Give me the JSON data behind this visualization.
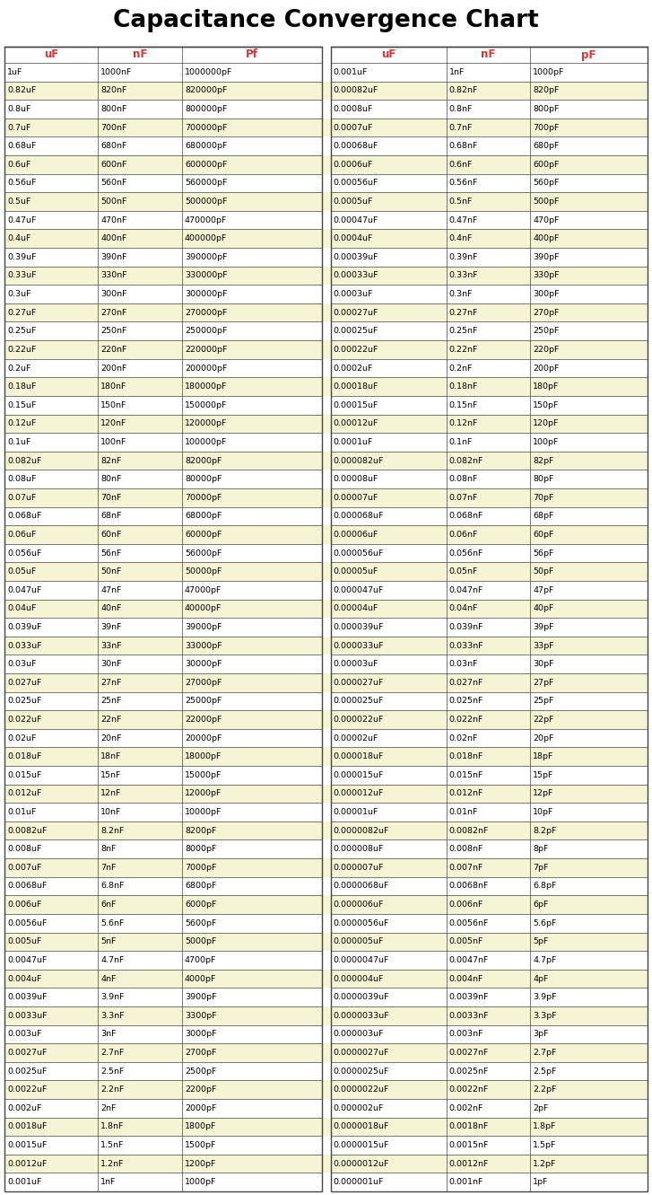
{
  "title": "Capacitance Convergence Chart",
  "title_fontsize": 19,
  "title_color": "#000000",
  "header_color": "#d63333",
  "header_left": [
    "uF",
    "nF",
    "Pf"
  ],
  "header_right": [
    "uF",
    "nF",
    "pF"
  ],
  "left_table": [
    [
      "1uF",
      "1000nF",
      "1000000pF"
    ],
    [
      "0.82uF",
      "820nF",
      "820000pF"
    ],
    [
      "0.8uF",
      "800nF",
      "800000pF"
    ],
    [
      "0.7uF",
      "700nF",
      "700000pF"
    ],
    [
      "0.68uF",
      "680nF",
      "680000pF"
    ],
    [
      "0.6uF",
      "600nF",
      "600000pF"
    ],
    [
      "0.56uF",
      "560nF",
      "560000pF"
    ],
    [
      "0.5uF",
      "500nF",
      "500000pF"
    ],
    [
      "0.47uF",
      "470nF",
      "470000pF"
    ],
    [
      "0.4uF",
      "400nF",
      "400000pF"
    ],
    [
      "0.39uF",
      "390nF",
      "390000pF"
    ],
    [
      "0.33uF",
      "330nF",
      "330000pF"
    ],
    [
      "0.3uF",
      "300nF",
      "300000pF"
    ],
    [
      "0.27uF",
      "270nF",
      "270000pF"
    ],
    [
      "0.25uF",
      "250nF",
      "250000pF"
    ],
    [
      "0.22uF",
      "220nF",
      "220000pF"
    ],
    [
      "0.2uF",
      "200nF",
      "200000pF"
    ],
    [
      "0.18uF",
      "180nF",
      "180000pF"
    ],
    [
      "0.15uF",
      "150nF",
      "150000pF"
    ],
    [
      "0.12uF",
      "120nF",
      "120000pF"
    ],
    [
      "0.1uF",
      "100nF",
      "100000pF"
    ],
    [
      "0.082uF",
      "82nF",
      "82000pF"
    ],
    [
      "0.08uF",
      "80nF",
      "80000pF"
    ],
    [
      "0.07uF",
      "70nF",
      "70000pF"
    ],
    [
      "0.068uF",
      "68nF",
      "68000pF"
    ],
    [
      "0.06uF",
      "60nF",
      "60000pF"
    ],
    [
      "0.056uF",
      "56nF",
      "56000pF"
    ],
    [
      "0.05uF",
      "50nF",
      "50000pF"
    ],
    [
      "0.047uF",
      "47nF",
      "47000pF"
    ],
    [
      "0.04uF",
      "40nF",
      "40000pF"
    ],
    [
      "0.039uF",
      "39nF",
      "39000pF"
    ],
    [
      "0.033uF",
      "33nF",
      "33000pF"
    ],
    [
      "0.03uF",
      "30nF",
      "30000pF"
    ],
    [
      "0.027uF",
      "27nF",
      "27000pF"
    ],
    [
      "0.025uF",
      "25nF",
      "25000pF"
    ],
    [
      "0.022uF",
      "22nF",
      "22000pF"
    ],
    [
      "0.02uF",
      "20nF",
      "20000pF"
    ],
    [
      "0.018uF",
      "18nF",
      "18000pF"
    ],
    [
      "0.015uF",
      "15nF",
      "15000pF"
    ],
    [
      "0.012uF",
      "12nF",
      "12000pF"
    ],
    [
      "0.01uF",
      "10nF",
      "10000pF"
    ],
    [
      "0.0082uF",
      "8.2nF",
      "8200pF"
    ],
    [
      "0.008uF",
      "8nF",
      "8000pF"
    ],
    [
      "0.007uF",
      "7nF",
      "7000pF"
    ],
    [
      "0.0068uF",
      "6.8nF",
      "6800pF"
    ],
    [
      "0.006uF",
      "6nF",
      "6000pF"
    ],
    [
      "0.0056uF",
      "5.6nF",
      "5600pF"
    ],
    [
      "0.005uF",
      "5nF",
      "5000pF"
    ],
    [
      "0.0047uF",
      "4.7nF",
      "4700pF"
    ],
    [
      "0.004uF",
      "4nF",
      "4000pF"
    ],
    [
      "0.0039uF",
      "3.9nF",
      "3900pF"
    ],
    [
      "0.0033uF",
      "3.3nF",
      "3300pF"
    ],
    [
      "0.003uF",
      "3nF",
      "3000pF"
    ],
    [
      "0.0027uF",
      "2.7nF",
      "2700pF"
    ],
    [
      "0.0025uF",
      "2.5nF",
      "2500pF"
    ],
    [
      "0.0022uF",
      "2.2nF",
      "2200pF"
    ],
    [
      "0.002uF",
      "2nF",
      "2000pF"
    ],
    [
      "0.0018uF",
      "1.8nF",
      "1800pF"
    ],
    [
      "0.0015uF",
      "1.5nF",
      "1500pF"
    ],
    [
      "0.0012uF",
      "1.2nF",
      "1200pF"
    ],
    [
      "0.001uF",
      "1nF",
      "1000pF"
    ]
  ],
  "right_table": [
    [
      "0.001uF",
      "1nF",
      "1000pF"
    ],
    [
      "0.00082uF",
      "0.82nF",
      "820pF"
    ],
    [
      "0.0008uF",
      "0.8nF",
      "800pF"
    ],
    [
      "0.0007uF",
      "0.7nF",
      "700pF"
    ],
    [
      "0.00068uF",
      "0.68nF",
      "680pF"
    ],
    [
      "0.0006uF",
      "0.6nF",
      "600pF"
    ],
    [
      "0.00056uF",
      "0.56nF",
      "560pF"
    ],
    [
      "0.0005uF",
      "0.5nF",
      "500pF"
    ],
    [
      "0.00047uF",
      "0.47nF",
      "470pF"
    ],
    [
      "0.0004uF",
      "0.4nF",
      "400pF"
    ],
    [
      "0.00039uF",
      "0.39nF",
      "390pF"
    ],
    [
      "0.00033uF",
      "0.33nF",
      "330pF"
    ],
    [
      "0.0003uF",
      "0.3nF",
      "300pF"
    ],
    [
      "0.00027uF",
      "0.27nF",
      "270pF"
    ],
    [
      "0.00025uF",
      "0.25nF",
      "250pF"
    ],
    [
      "0.00022uF",
      "0.22nF",
      "220pF"
    ],
    [
      "0.0002uF",
      "0.2nF",
      "200pF"
    ],
    [
      "0.00018uF",
      "0.18nF",
      "180pF"
    ],
    [
      "0.00015uF",
      "0.15nF",
      "150pF"
    ],
    [
      "0.00012uF",
      "0.12nF",
      "120pF"
    ],
    [
      "0.0001uF",
      "0.1nF",
      "100pF"
    ],
    [
      "0.000082uF",
      "0.082nF",
      "82pF"
    ],
    [
      "0.00008uF",
      "0.08nF",
      "80pF"
    ],
    [
      "0.00007uF",
      "0.07nF",
      "70pF"
    ],
    [
      "0.000068uF",
      "0.068nF",
      "68pF"
    ],
    [
      "0.00006uF",
      "0.06nF",
      "60pF"
    ],
    [
      "0.000056uF",
      "0.056nF",
      "56pF"
    ],
    [
      "0.00005uF",
      "0.05nF",
      "50pF"
    ],
    [
      "0.000047uF",
      "0.047nF",
      "47pF"
    ],
    [
      "0.00004uF",
      "0.04nF",
      "40pF"
    ],
    [
      "0.000039uF",
      "0.039nF",
      "39pF"
    ],
    [
      "0.000033uF",
      "0.033nF",
      "33pF"
    ],
    [
      "0.00003uF",
      "0.03nF",
      "30pF"
    ],
    [
      "0.000027uF",
      "0.027nF",
      "27pF"
    ],
    [
      "0.000025uF",
      "0.025nF",
      "25pF"
    ],
    [
      "0.000022uF",
      "0.022nF",
      "22pF"
    ],
    [
      "0.00002uF",
      "0.02nF",
      "20pF"
    ],
    [
      "0.000018uF",
      "0.018nF",
      "18pF"
    ],
    [
      "0.000015uF",
      "0.015nF",
      "15pF"
    ],
    [
      "0.000012uF",
      "0.012nF",
      "12pF"
    ],
    [
      "0.00001uF",
      "0.01nF",
      "10pF"
    ],
    [
      "0.0000082uF",
      "0.0082nF",
      "8.2pF"
    ],
    [
      "0.000008uF",
      "0.008nF",
      "8pF"
    ],
    [
      "0.000007uF",
      "0.007nF",
      "7pF"
    ],
    [
      "0.0000068uF",
      "0.0068nF",
      "6.8pF"
    ],
    [
      "0.000006uF",
      "0.006nF",
      "6pF"
    ],
    [
      "0.0000056uF",
      "0.0056nF",
      "5.6pF"
    ],
    [
      "0.000005uF",
      "0.005nF",
      "5pF"
    ],
    [
      "0.0000047uF",
      "0.0047nF",
      "4.7pF"
    ],
    [
      "0.000004uF",
      "0.004nF",
      "4pF"
    ],
    [
      "0.0000039uF",
      "0.0039nF",
      "3.9pF"
    ],
    [
      "0.0000033uF",
      "0.0033nF",
      "3.3pF"
    ],
    [
      "0.000003uF",
      "0.003nF",
      "3pF"
    ],
    [
      "0.0000027uF",
      "0.0027nF",
      "2.7pF"
    ],
    [
      "0.0000025uF",
      "0.0025nF",
      "2.5pF"
    ],
    [
      "0.0000022uF",
      "0.0022nF",
      "2.2pF"
    ],
    [
      "0.000002uF",
      "0.002nF",
      "2pF"
    ],
    [
      "0.0000018uF",
      "0.0018nF",
      "1.8pF"
    ],
    [
      "0.0000015uF",
      "0.0015nF",
      "1.5pF"
    ],
    [
      "0.0000012uF",
      "0.0012nF",
      "1.2pF"
    ],
    [
      "0.000001uF",
      "0.001nF",
      "1pF"
    ]
  ],
  "row_bg_white": "#ffffff",
  "row_bg_yellow": "#f5f5d5",
  "gap_bg_yellow": "#f5f5d5",
  "header_bg": "#ffffff",
  "grid_color": "#444444",
  "text_color": "#000000",
  "bg_color": "#ffffff",
  "fig_width": 7.27,
  "fig_height": 13.31,
  "dpi": 100
}
